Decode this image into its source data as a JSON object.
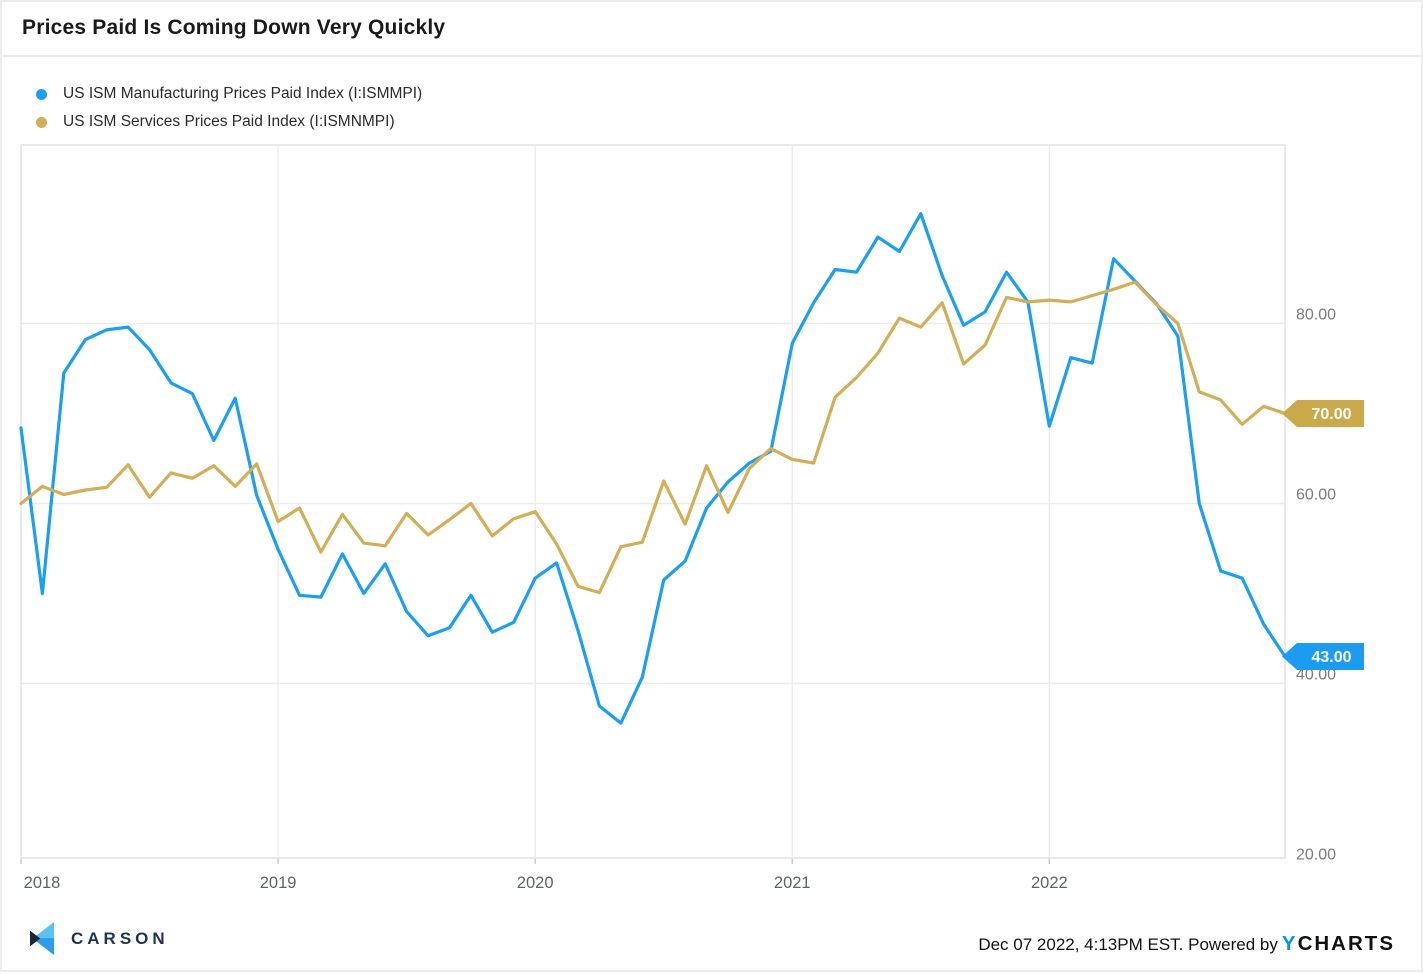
{
  "title": "Prices Paid Is Coming Down Very Quickly",
  "legend": {
    "items": [
      {
        "label": "US ISM Manufacturing Prices Paid Index (I:ISMMPI)",
        "color": "#1c9ef3"
      },
      {
        "label": "US ISM Services Prices Paid Index (I:ISMNMPI)",
        "color": "#d2ae58"
      }
    ]
  },
  "chart_data": {
    "type": "line",
    "title": "Prices Paid Is Coming Down Very Quickly",
    "x_start": "2018-01",
    "x_interval": "month",
    "x_count": 60,
    "x_tick_labels": [
      "2018",
      "2019",
      "2020",
      "2021",
      "2022"
    ],
    "x_tick_month_indices": [
      0,
      12,
      24,
      36,
      48
    ],
    "y_ticks": [
      20,
      40,
      60,
      80
    ],
    "y_tick_labels": [
      "20.00",
      "40.00",
      "60.00",
      "80.00"
    ],
    "ylim": [
      20.5,
      99.8
    ],
    "grid": "on",
    "legend_position": "top-left",
    "series": [
      {
        "name": "US ISM Manufacturing Prices Paid Index (I:ISMMPI)",
        "color": "#1c9ef3",
        "tag_color": "#1d9bf1",
        "end_label": "43.00",
        "values": [
          68.4,
          50.0,
          74.5,
          78.2,
          79.3,
          79.6,
          77.1,
          73.4,
          72.2,
          67.0,
          71.7,
          60.9,
          54.9,
          49.8,
          49.6,
          54.4,
          50.0,
          53.3,
          48.0,
          45.3,
          46.2,
          49.8,
          45.7,
          46.8,
          51.7,
          53.4,
          45.9,
          37.5,
          35.6,
          40.7,
          51.5,
          53.6,
          59.5,
          62.4,
          64.5,
          65.8,
          77.8,
          82.3,
          86.0,
          85.7,
          89.6,
          88.0,
          92.2,
          85.3,
          79.8,
          81.3,
          85.7,
          82.4,
          68.6,
          76.2,
          75.6,
          87.2,
          84.7,
          82.2,
          78.6,
          60.0,
          52.5,
          51.7,
          46.6,
          43.0
        ]
      },
      {
        "name": "US ISM Services Prices Paid Index (I:ISMNMPI)",
        "color": "#d2ae58",
        "tag_color": "#c9a94a",
        "end_label": "70.00",
        "values": [
          60.0,
          61.9,
          61.0,
          61.5,
          61.8,
          64.3,
          60.7,
          63.4,
          62.8,
          64.2,
          61.9,
          64.4,
          58.0,
          59.5,
          54.6,
          58.8,
          55.6,
          55.3,
          58.9,
          56.5,
          58.2,
          60.0,
          56.4,
          58.3,
          59.1,
          55.5,
          50.8,
          50.1,
          55.2,
          55.7,
          62.5,
          57.7,
          64.2,
          59.0,
          63.9,
          66.1,
          64.9,
          64.5,
          71.8,
          74.0,
          76.7,
          80.6,
          79.6,
          82.3,
          75.5,
          77.6,
          82.9,
          82.4,
          82.6,
          82.4,
          83.1,
          83.8,
          84.6,
          82.1,
          80.0,
          72.4,
          71.5,
          68.8,
          70.8,
          70.0
        ]
      }
    ]
  },
  "footer": {
    "brand": "CARSON",
    "timestamp": "Dec 07 2022, 4:13PM EST. Powered by",
    "ycharts_y": "Y",
    "ycharts_rest": "CHARTS"
  }
}
